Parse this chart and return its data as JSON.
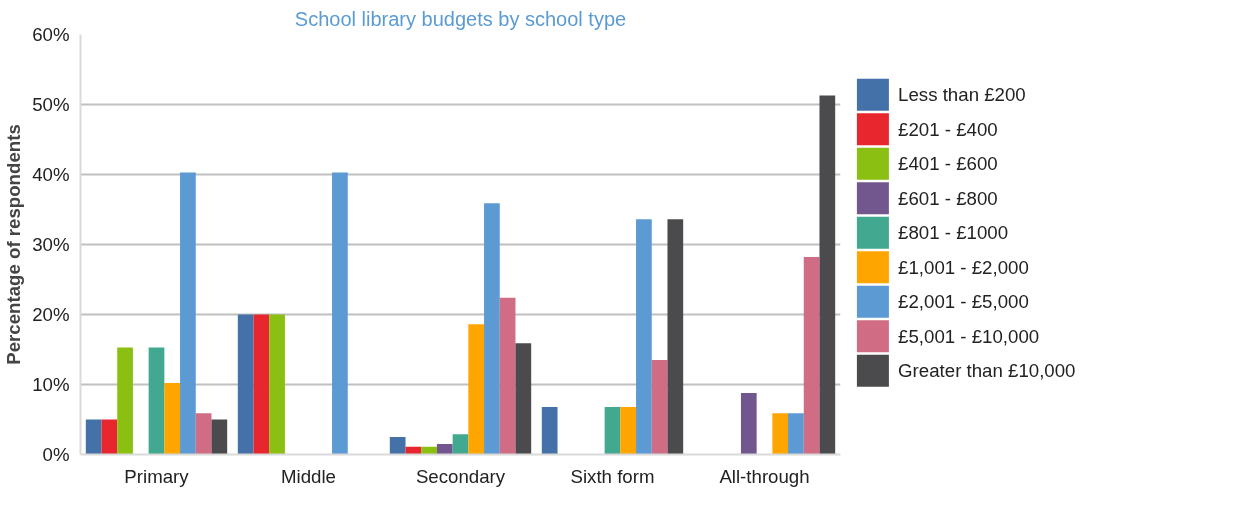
{
  "chart_data": {
    "type": "bar",
    "title": "School library budgets by school type",
    "ylabel": "Percentage of respondents",
    "categories": [
      "Primary",
      "Middle",
      "Secondary",
      "Sixth form",
      "All-through"
    ],
    "series": [
      {
        "name": "Less than £200",
        "color": "#4472a8",
        "values": [
          5,
          20,
          2.5,
          6.8,
          0
        ]
      },
      {
        "name": "£201 - £400",
        "color": "#e8262e",
        "values": [
          5,
          20,
          1.1,
          0,
          0
        ]
      },
      {
        "name": "£401 - £600",
        "color": "#8bc013",
        "values": [
          15.3,
          20,
          1.1,
          0,
          0
        ]
      },
      {
        "name": "£601 - £800",
        "color": "#72578e",
        "values": [
          0,
          0,
          1.5,
          0,
          8.8
        ]
      },
      {
        "name": "£801 - £1000",
        "color": "#42a88f",
        "values": [
          15.3,
          0,
          2.9,
          6.8,
          0
        ]
      },
      {
        "name": "£1,001 - £2,000",
        "color": "#fea500",
        "values": [
          10.2,
          0,
          18.6,
          6.8,
          5.9
        ]
      },
      {
        "name": "£2,001 - £5,000",
        "color": "#5b9ad2",
        "values": [
          40.3,
          40.3,
          35.9,
          33.6,
          5.9
        ]
      },
      {
        "name": "£5,001 - £10,000",
        "color": "#d06d85",
        "values": [
          5.9,
          0,
          22.4,
          13.5,
          28.2
        ]
      },
      {
        "name": "Greater than £10,000",
        "color": "#4b4b4d",
        "values": [
          5,
          0,
          15.9,
          33.6,
          51.3
        ]
      }
    ],
    "ylim": [
      0,
      60
    ],
    "yticks": [
      {
        "value": 0,
        "label": "0%"
      },
      {
        "value": 10,
        "label": "10%"
      },
      {
        "value": 20,
        "label": "20%"
      },
      {
        "value": 30,
        "label": "30%"
      },
      {
        "value": 40,
        "label": "40%"
      },
      {
        "value": 50,
        "label": "50%"
      },
      {
        "value": 60,
        "label": "60%"
      }
    ],
    "grid": "y",
    "legend": "right"
  }
}
